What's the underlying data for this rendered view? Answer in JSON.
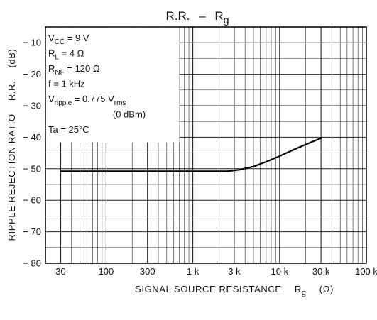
{
  "chart_data": {
    "type": "line",
    "title": {
      "main": "R.R.",
      "sep": "–",
      "var": "R",
      "var_sub": "g"
    },
    "xlabel": {
      "text": "SIGNAL SOURCE RESISTANCE",
      "var": "R",
      "var_sub": "g",
      "unit": "(Ω)"
    },
    "ylabel": {
      "text": "RIPPLE REJECTION RATIO",
      "var": "R.R.",
      "unit": "(dB)"
    },
    "x_scale": "log",
    "xlim": [
      20,
      100000
    ],
    "ylim": [
      -80,
      -5
    ],
    "x_ticks": [
      {
        "value": 30,
        "label": "30"
      },
      {
        "value": 100,
        "label": "100"
      },
      {
        "value": 300,
        "label": "300"
      },
      {
        "value": 1000,
        "label": "1 k"
      },
      {
        "value": 3000,
        "label": "3 k"
      },
      {
        "value": 10000,
        "label": "10 k"
      },
      {
        "value": 30000,
        "label": "30 k"
      },
      {
        "value": 100000,
        "label": "100 k"
      }
    ],
    "y_ticks": [
      {
        "value": -10,
        "label": "− 10"
      },
      {
        "value": -20,
        "label": "− 20"
      },
      {
        "value": -30,
        "label": "− 30"
      },
      {
        "value": -40,
        "label": "− 40"
      },
      {
        "value": -50,
        "label": "− 50"
      },
      {
        "value": -60,
        "label": "− 60"
      },
      {
        "value": -70,
        "label": "− 70"
      },
      {
        "value": -80,
        "label": "− 80"
      }
    ],
    "grid": true,
    "conditions": [
      {
        "base": "V",
        "sub": "CC",
        "rest": " = 9 V"
      },
      {
        "base": "R",
        "sub": "L",
        "rest": " = 4 Ω"
      },
      {
        "base": "R",
        "sub": "NF",
        "rest": " = 120 Ω"
      },
      {
        "base": "f",
        "sub": "",
        "rest": " = 1 kHz"
      },
      {
        "base": "V",
        "sub": "ripple",
        "rest": " = 0.775 V",
        "rest_sub": "rms"
      },
      {
        "base": "",
        "sub": "",
        "rest": "(0 dBm)"
      },
      {
        "base": "Ta",
        "sub": "",
        "rest": " = 25°C"
      }
    ],
    "series": [
      {
        "x": [
          30,
          100,
          300,
          1000,
          2500,
          3500,
          5000,
          7000,
          10000,
          15000,
          20000,
          30000
        ],
        "y": [
          -50.8,
          -50.8,
          -50.8,
          -50.8,
          -50.8,
          -50.3,
          -49.3,
          -47.8,
          -46.0,
          -43.8,
          -42.3,
          -40.3
        ]
      }
    ]
  }
}
